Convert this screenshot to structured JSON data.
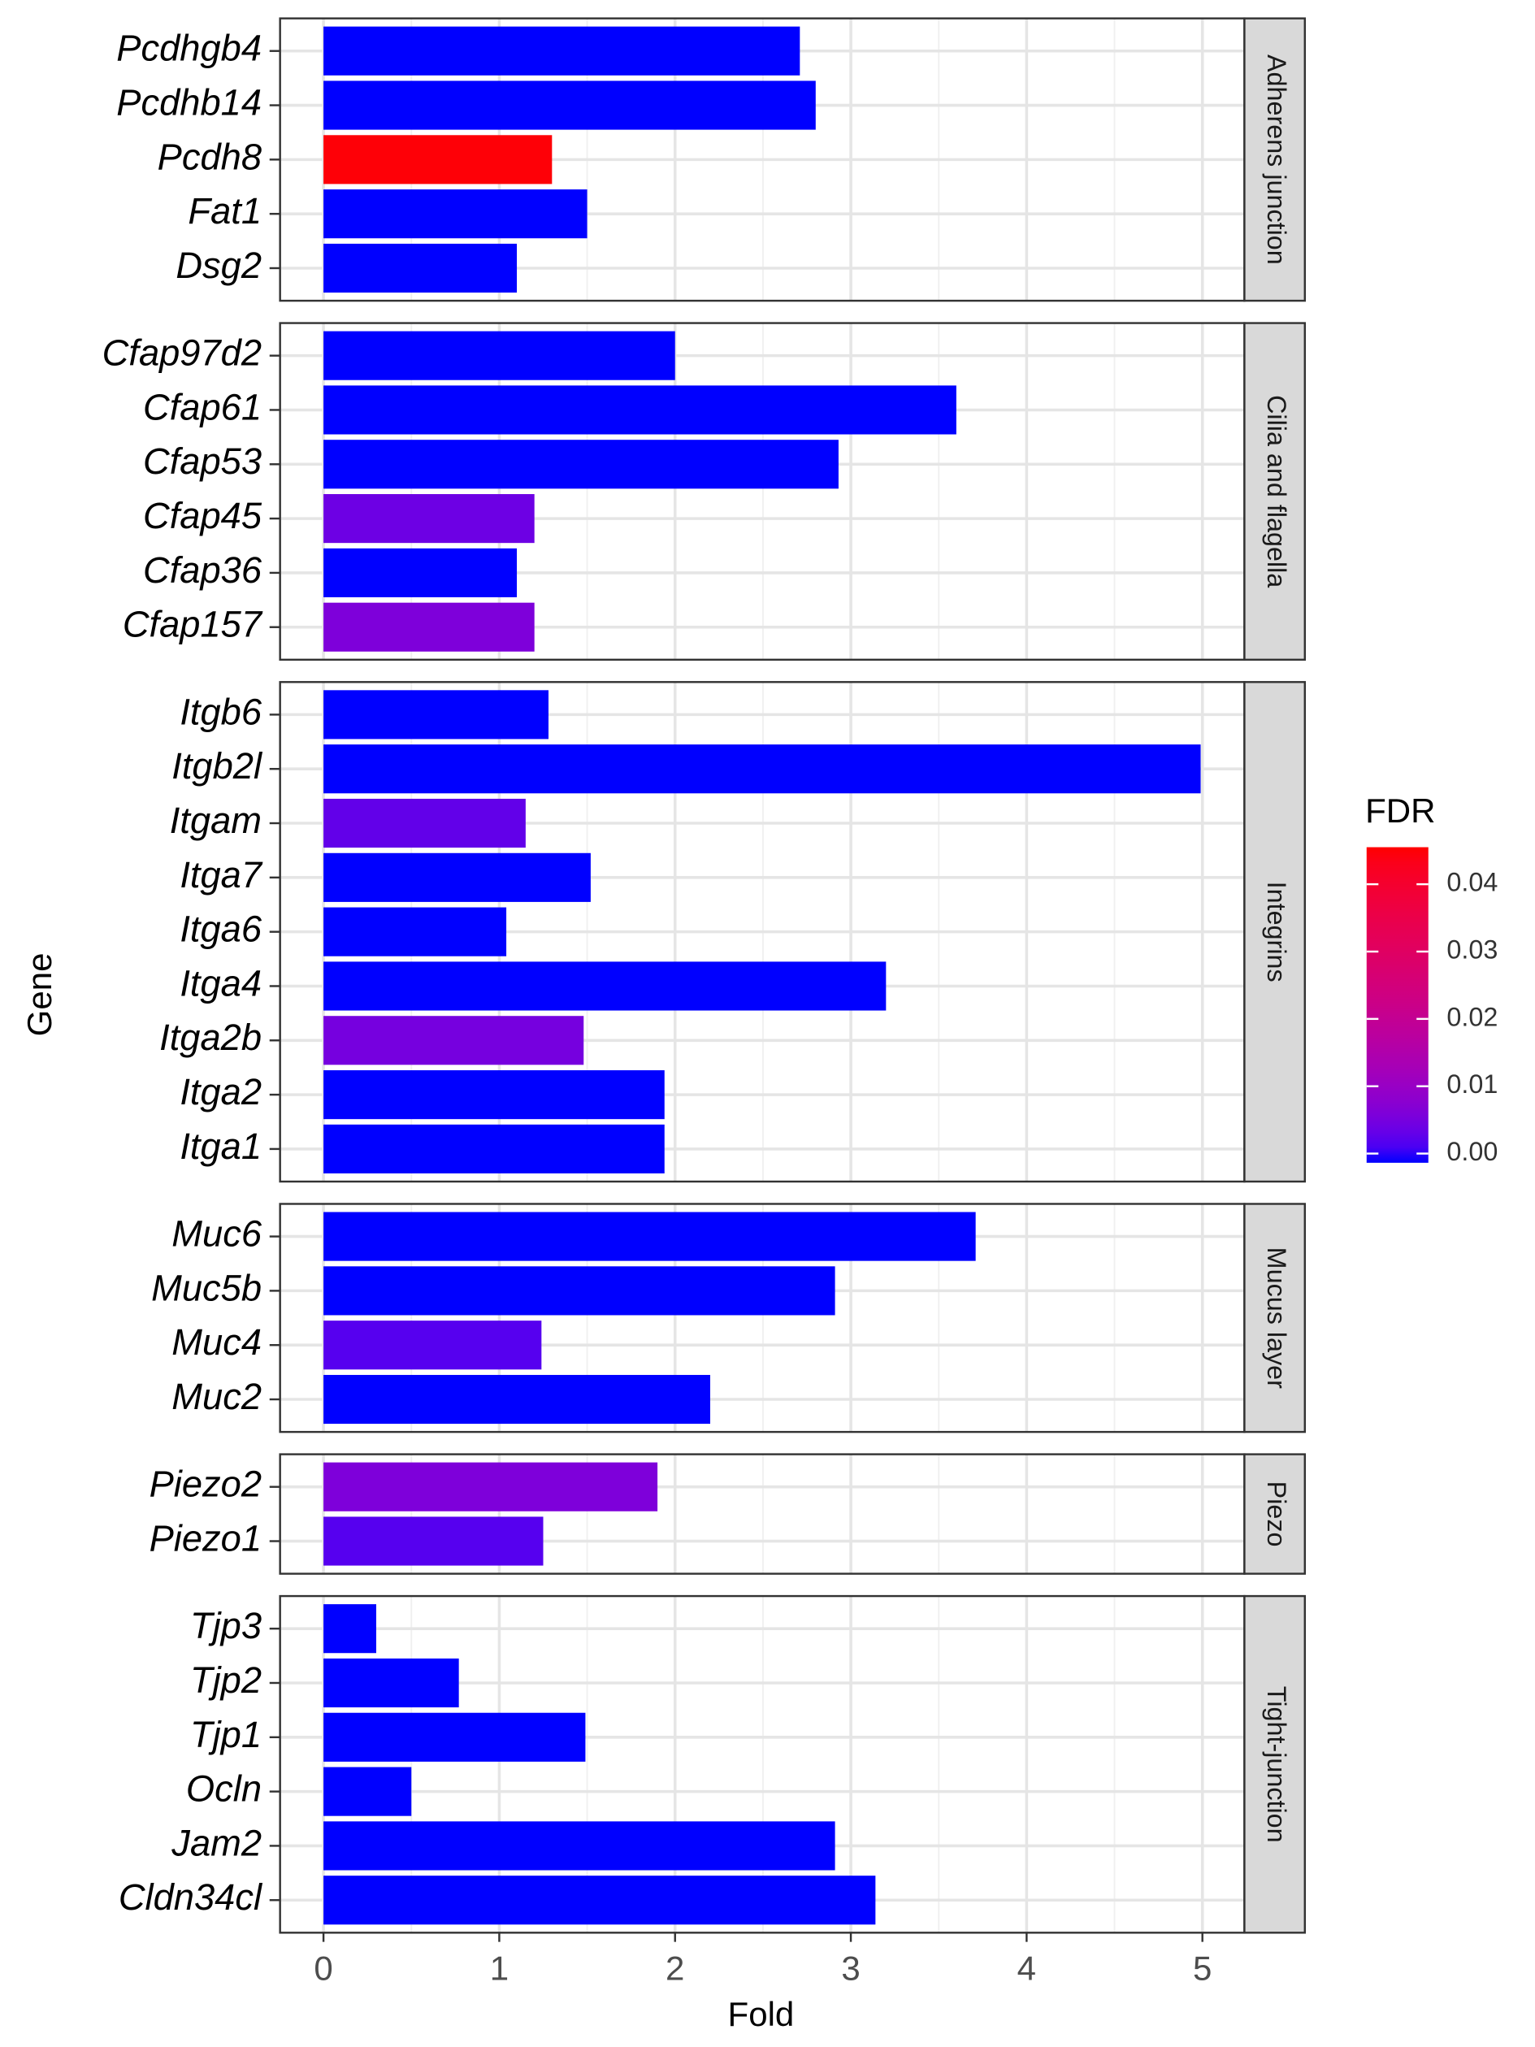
{
  "chart_data": {
    "type": "bar",
    "orientation": "horizontal",
    "xlabel": "Fold",
    "ylabel": "Gene",
    "xlim": [
      -0.247,
      5.239
    ],
    "xticks": [
      0,
      1,
      2,
      3,
      4,
      5
    ],
    "grid": true,
    "minor_grid": true,
    "facets": [
      {
        "name": "Adherens junction",
        "categories": [
          "Pcdhgb4",
          "Pcdhb14",
          "Pcdh8",
          "Fat1",
          "Dsg2"
        ],
        "values": [
          2.71,
          2.8,
          1.3,
          1.5,
          1.1
        ],
        "fdr": [
          0,
          0,
          0.045,
          0,
          0
        ]
      },
      {
        "name": "Cilia and flagella",
        "categories": [
          "Cfap97d2",
          "Cfap61",
          "Cfap53",
          "Cfap45",
          "Cfap36",
          "Cfap157"
        ],
        "values": [
          2.0,
          3.6,
          2.93,
          1.2,
          1.1,
          1.2
        ],
        "fdr": [
          0,
          0,
          0,
          0.005,
          0,
          0.007
        ]
      },
      {
        "name": "Integrins",
        "categories": [
          "Itgb6",
          "Itgb2l",
          "Itgam",
          "Itga7",
          "Itga6",
          "Itga4",
          "Itga2b",
          "Itga2",
          "Itga1"
        ],
        "values": [
          1.28,
          4.99,
          1.15,
          1.52,
          1.04,
          3.2,
          1.48,
          1.94,
          1.94
        ],
        "fdr": [
          0,
          0,
          0.004,
          0,
          0,
          0,
          0.006,
          0,
          0
        ]
      },
      {
        "name": "Mucus layer",
        "categories": [
          "Muc6",
          "Muc5b",
          "Muc4",
          "Muc2"
        ],
        "values": [
          3.71,
          2.91,
          1.24,
          2.2
        ],
        "fdr": [
          0,
          0,
          0.003,
          0
        ]
      },
      {
        "name": "Piezo",
        "categories": [
          "Piezo2",
          "Piezo1"
        ],
        "values": [
          1.9,
          1.25
        ],
        "fdr": [
          0.007,
          0.003
        ]
      },
      {
        "name": "Tight-junction",
        "categories": [
          "Tjp3",
          "Tjp2",
          "Tjp1",
          "Ocln",
          "Jam2",
          "Cldn34cl"
        ],
        "values": [
          0.3,
          0.77,
          1.49,
          0.5,
          2.91,
          3.14
        ],
        "fdr": [
          0,
          0,
          0,
          0,
          0,
          0
        ]
      }
    ],
    "colorbar": {
      "title": "FDR",
      "lim": [
        0,
        0.0455
      ],
      "low": "#0000ff",
      "high": "#ff0000",
      "ticks": [
        {
          "value": 0,
          "label": "0.00"
        },
        {
          "value": 0.01,
          "label": "0.01"
        },
        {
          "value": 0.02,
          "label": "0.02"
        },
        {
          "value": 0.03,
          "label": "0.03"
        },
        {
          "value": 0.04,
          "label": "0.04"
        }
      ]
    }
  }
}
